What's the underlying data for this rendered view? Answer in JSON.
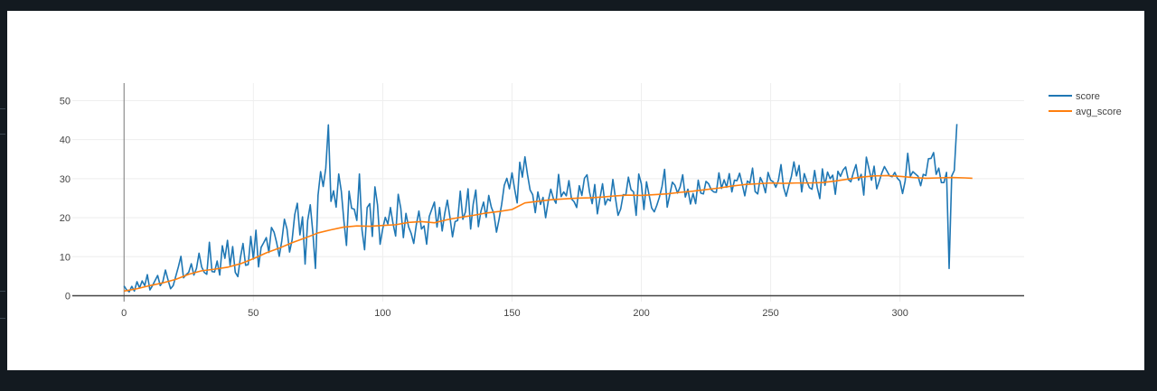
{
  "colors": {
    "background": "#131a20",
    "panel": "#ffffff",
    "score": "#1f77b4",
    "avg_score": "#ff7f0e",
    "grid": "#eeeeee",
    "axis": "#444444"
  },
  "legend": {
    "items": [
      {
        "label": "score",
        "color": "#1f77b4"
      },
      {
        "label": "avg_score",
        "color": "#ff7f0e"
      }
    ]
  },
  "chart_data": {
    "type": "line",
    "title": "",
    "xlabel": "",
    "ylabel": "",
    "xlim": [
      -20,
      348
    ],
    "ylim": [
      -1.5,
      54.5
    ],
    "xticks": [
      0,
      50,
      100,
      150,
      200,
      250,
      300
    ],
    "yticks": [
      0,
      10,
      20,
      30,
      40,
      50
    ],
    "grid": true,
    "legend_position": "top-right",
    "n_points": 329,
    "series": [
      {
        "name": "score",
        "color": "#1f77b4",
        "x_start": 0,
        "x_step": 1,
        "values": [
          2.5,
          1.5,
          1.0,
          2.4,
          1.2,
          3.6,
          2.0,
          3.8,
          2.6,
          5.4,
          1.5,
          2.6,
          3.9,
          5.2,
          2.6,
          3.6,
          6.6,
          4.1,
          1.8,
          2.6,
          5.0,
          7.4,
          10.1,
          4.6,
          5.4,
          6.0,
          8.2,
          5.3,
          7.0,
          10.9,
          7.4,
          6.0,
          5.5,
          13.7,
          6.2,
          6.1,
          8.9,
          5.3,
          12.8,
          9.6,
          14.2,
          7.8,
          12.6,
          6.0,
          4.9,
          9.8,
          13.4,
          7.8,
          8.0,
          15.2,
          9.4,
          16.8,
          7.4,
          12.4,
          13.6,
          14.9,
          11.1,
          17.5,
          16.3,
          13.6,
          10.1,
          14.1,
          19.6,
          17.1,
          11.2,
          14.4,
          20.8,
          23.7,
          15.6,
          20.2,
          8.1,
          19.3,
          23.3,
          16.2,
          7.0,
          25.7,
          31.8,
          28.0,
          32.7,
          43.8,
          24.2,
          26.9,
          22.7,
          31.2,
          26.8,
          19.2,
          12.9,
          26.8,
          22.4,
          22.2,
          19.3,
          31.2,
          16.9,
          11.8,
          22.6,
          23.6,
          15.2,
          27.9,
          23.3,
          13.2,
          17.1,
          20.1,
          18.4,
          22.6,
          18.5,
          15.3,
          26.0,
          22.4,
          14.9,
          21.1,
          17.7,
          16.0,
          13.4,
          18.2,
          21.7,
          17.1,
          17.9,
          13.2,
          20.3,
          22.2,
          24.0,
          17.6,
          22.6,
          16.6,
          21.1,
          24.5,
          20.1,
          15.1,
          19.0,
          19.3,
          26.8,
          19.6,
          21.5,
          27.4,
          17.1,
          23.5,
          27.1,
          17.7,
          21.7,
          24.0,
          20.1,
          25.7,
          22.7,
          21.0,
          16.3,
          19.6,
          23.4,
          28.3,
          30.1,
          27.4,
          31.5,
          27.4,
          23.8,
          34.2,
          30.4,
          35.6,
          31.0,
          27.1,
          25.9,
          21.3,
          26.6,
          23.4,
          25.2,
          20.0,
          24.2,
          27.3,
          24.9,
          23.7,
          31.1,
          25.4,
          26.6,
          25.6,
          29.5,
          24.8,
          24.1,
          22.6,
          28.2,
          25.7,
          30.1,
          31.0,
          26.5,
          23.6,
          28.5,
          21.0,
          25.0,
          28.7,
          23.3,
          24.8,
          24.3,
          29.8,
          25.0,
          20.6,
          22.2,
          25.9,
          25.8,
          30.4,
          27.2,
          26.6,
          20.6,
          31.2,
          28.7,
          22.1,
          29.2,
          25.8,
          22.5,
          21.5,
          23.2,
          25.3,
          28.0,
          32.4,
          22.7,
          25.9,
          29.1,
          28.3,
          26.3,
          27.9,
          31.0,
          25.3,
          27.3,
          23.5,
          26.2,
          23.6,
          29.6,
          26.3,
          26.1,
          29.3,
          28.7,
          27.2,
          26.6,
          26.5,
          31.5,
          27.5,
          29.7,
          27.8,
          31.3,
          26.6,
          29.6,
          29.5,
          31.4,
          28.6,
          25.6,
          29.4,
          28.9,
          32.7,
          26.7,
          26.1,
          30.3,
          28.9,
          26.4,
          31.6,
          29.6,
          29.2,
          27.8,
          29.6,
          33.6,
          27.8,
          25.5,
          28.2,
          30.5,
          34.3,
          30.7,
          33.4,
          26.6,
          31.3,
          29.3,
          27.7,
          27.3,
          32.1,
          27.8,
          24.9,
          32.5,
          28.3,
          31.7,
          30.0,
          30.9,
          26.0,
          31.9,
          30.6,
          32.2,
          33.0,
          29.8,
          29.2,
          31.6,
          33.6,
          29.6,
          31.1,
          25.8,
          35.5,
          32.6,
          29.6,
          33.2,
          27.4,
          29.4,
          31.5,
          33.1,
          31.9,
          30.7,
          30.5,
          31.6,
          30.1,
          29.4,
          26.2,
          29.4,
          36.5,
          30.6,
          31.8,
          31.2,
          30.6,
          28.2,
          31.1,
          30.8,
          35.1,
          35.2,
          36.7,
          31.1,
          32.7,
          29.0,
          29.0,
          31.6,
          7.0,
          30.7,
          32.1,
          44.0
        ]
      },
      {
        "name": "avg_score",
        "color": "#ff7f0e",
        "points": [
          [
            0,
            1.2
          ],
          [
            5,
            1.8
          ],
          [
            10,
            2.6
          ],
          [
            15,
            3.3
          ],
          [
            20,
            4.2
          ],
          [
            25,
            5.5
          ],
          [
            30,
            6.4
          ],
          [
            35,
            6.8
          ],
          [
            40,
            7.3
          ],
          [
            45,
            8.2
          ],
          [
            50,
            9.5
          ],
          [
            55,
            11.0
          ],
          [
            60,
            12.2
          ],
          [
            65,
            13.6
          ],
          [
            70,
            14.8
          ],
          [
            75,
            16.1
          ],
          [
            80,
            16.9
          ],
          [
            85,
            17.6
          ],
          [
            90,
            17.9
          ],
          [
            95,
            17.8
          ],
          [
            100,
            18.0
          ],
          [
            105,
            18.2
          ],
          [
            110,
            18.8
          ],
          [
            115,
            19.0
          ],
          [
            120,
            18.7
          ],
          [
            125,
            19.5
          ],
          [
            130,
            20.1
          ],
          [
            135,
            20.6
          ],
          [
            140,
            21.2
          ],
          [
            145,
            21.6
          ],
          [
            150,
            22.1
          ],
          [
            155,
            23.8
          ],
          [
            160,
            24.2
          ],
          [
            165,
            24.6
          ],
          [
            170,
            24.8
          ],
          [
            175,
            25.0
          ],
          [
            180,
            25.1
          ],
          [
            185,
            25.3
          ],
          [
            190,
            25.6
          ],
          [
            195,
            25.8
          ],
          [
            200,
            25.7
          ],
          [
            205,
            25.9
          ],
          [
            210,
            26.1
          ],
          [
            215,
            26.5
          ],
          [
            220,
            26.8
          ],
          [
            225,
            27.2
          ],
          [
            230,
            27.6
          ],
          [
            235,
            28.1
          ],
          [
            240,
            28.5
          ],
          [
            245,
            28.7
          ],
          [
            250,
            28.9
          ],
          [
            255,
            28.8
          ],
          [
            260,
            28.9
          ],
          [
            265,
            28.9
          ],
          [
            270,
            29.0
          ],
          [
            275,
            29.4
          ],
          [
            280,
            29.9
          ],
          [
            285,
            30.4
          ],
          [
            290,
            30.7
          ],
          [
            295,
            30.8
          ],
          [
            300,
            30.6
          ],
          [
            305,
            30.3
          ],
          [
            310,
            30.1
          ],
          [
            315,
            30.2
          ],
          [
            320,
            30.3
          ],
          [
            325,
            30.2
          ],
          [
            328,
            30.1
          ]
        ]
      }
    ]
  }
}
